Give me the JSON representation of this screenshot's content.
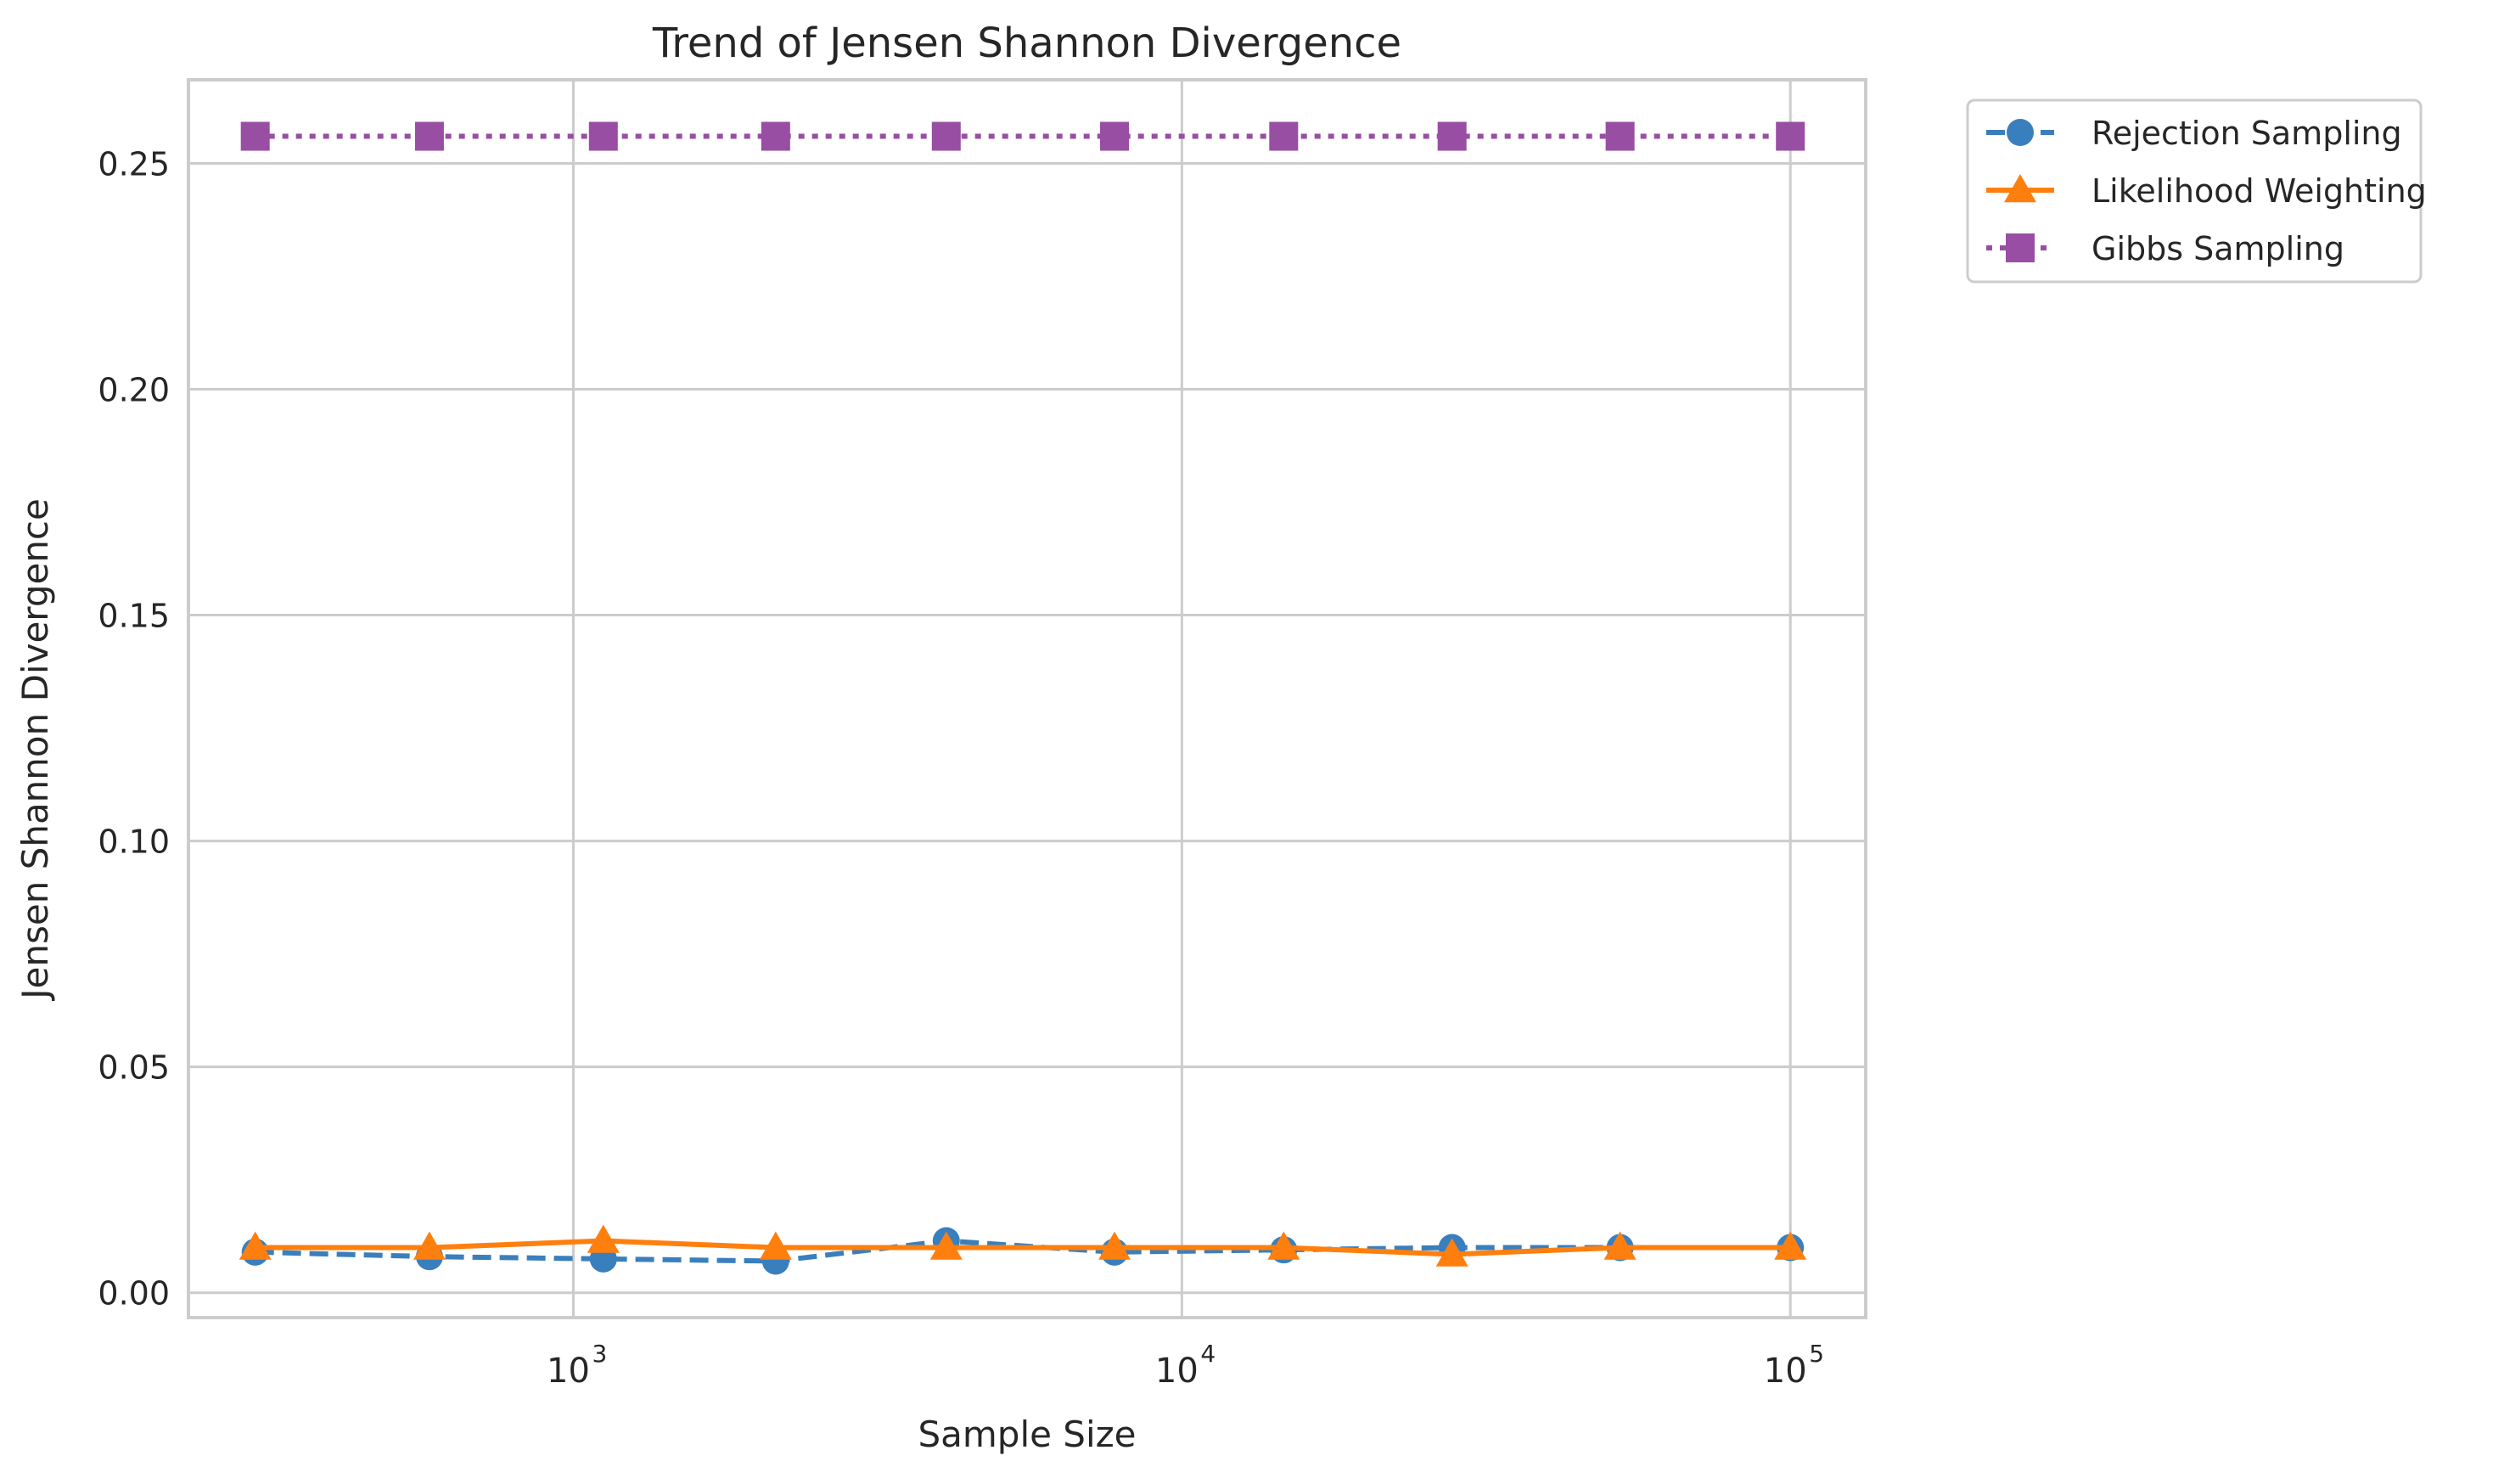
{
  "chart_data": {
    "type": "line",
    "title": "Trend of Jensen Shannon Divergence",
    "xlabel": "Sample Size",
    "ylabel": "Jensen Shannon Divergence",
    "x_scale": "log",
    "xlim": [
      233,
      133000
    ],
    "ylim": [
      -0.0055,
      0.2685
    ],
    "grid": true,
    "legend_position": "outside-top-right",
    "x": [
      300,
      580,
      1120,
      2150,
      4100,
      7750,
      14700,
      27800,
      52500,
      100000
    ],
    "x_ticks": [
      {
        "value": 1000,
        "base": "10",
        "exp": "3"
      },
      {
        "value": 10000,
        "base": "10",
        "exp": "4"
      },
      {
        "value": 100000,
        "base": "10",
        "exp": "5"
      }
    ],
    "y_ticks": [
      {
        "value": 0.0,
        "label": "0.00"
      },
      {
        "value": 0.05,
        "label": "0.05"
      },
      {
        "value": 0.1,
        "label": "0.10"
      },
      {
        "value": 0.15,
        "label": "0.15"
      },
      {
        "value": 0.2,
        "label": "0.20"
      },
      {
        "value": 0.25,
        "label": "0.25"
      }
    ],
    "series": [
      {
        "name": "Rejection Sampling",
        "color": "#3a7fbd",
        "marker": "circle",
        "line_style": "dashed",
        "values": [
          0.009,
          0.008,
          0.0075,
          0.007,
          0.0115,
          0.009,
          0.0095,
          0.01,
          0.01,
          0.01
        ]
      },
      {
        "name": "Likelihood Weighting",
        "color": "#ff7f0e",
        "marker": "triangle",
        "line_style": "solid",
        "values": [
          0.01,
          0.01,
          0.0115,
          0.01,
          0.01,
          0.01,
          0.01,
          0.0085,
          0.01,
          0.01
        ]
      },
      {
        "name": "Gibbs Sampling",
        "color": "#984ea3",
        "marker": "square",
        "line_style": "dotted",
        "values": [
          0.256,
          0.256,
          0.256,
          0.256,
          0.256,
          0.256,
          0.256,
          0.256,
          0.256,
          0.256
        ]
      }
    ]
  }
}
